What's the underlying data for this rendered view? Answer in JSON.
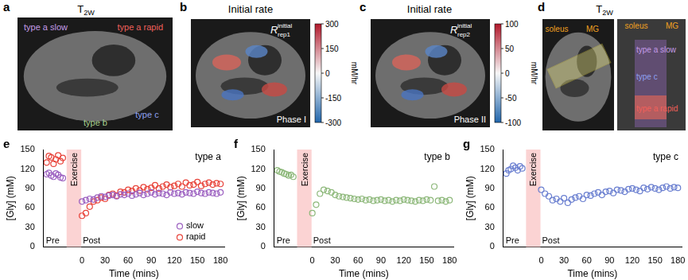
{
  "panels": [
    {
      "letter": "a",
      "title": {
        "text": "T",
        "sub": "2W"
      },
      "labels": [
        {
          "text": "type a slow",
          "color": "#c49be8"
        },
        {
          "text": "type a rapid",
          "color": "#f0605a"
        },
        {
          "text": "type b",
          "color": "#a8d08d"
        },
        {
          "text": "type c",
          "color": "#8ea0f0"
        }
      ]
    },
    {
      "letter": "b",
      "title": "Initial rate",
      "symbol": {
        "text": "R",
        "sup": "initial",
        "sub": "rep1"
      },
      "labels": [
        {
          "text": "Phase I",
          "color": "#ffffff"
        }
      ],
      "colorbar": {
        "range": [
          -300,
          300
        ],
        "ticks": [
          300,
          150,
          0,
          -150,
          -300
        ],
        "label": "mM/hr"
      }
    },
    {
      "letter": "c",
      "title": "Initial rate",
      "symbol": {
        "text": "R",
        "sup": "initial",
        "sub": "rep2"
      },
      "labels": [
        {
          "text": "Phase II",
          "color": "#ffffff"
        }
      ],
      "colorbar": {
        "range": [
          -100,
          100
        ],
        "ticks": [
          100,
          50,
          0,
          -50,
          -100
        ],
        "label": "mM/hr"
      }
    },
    {
      "letter": "d",
      "title": {
        "text": "T",
        "sub": "2W"
      },
      "labels": [
        {
          "text": "soleus",
          "color": "#f0a020"
        },
        {
          "text": "MG",
          "color": "#f0a020"
        },
        {
          "text": "soleus",
          "color": "#f0a020"
        },
        {
          "text": "MG",
          "color": "#f0a020"
        },
        {
          "text": "type a slow",
          "color": "#c49be8"
        },
        {
          "text": "type c",
          "color": "#8ea0f0"
        },
        {
          "text": "type a rapid",
          "color": "#f0605a"
        }
      ]
    }
  ],
  "chart_data": [
    {
      "type": "scatter",
      "panel": "e",
      "title": "type a",
      "x_label": "Time (mins)",
      "y_label": "[Gly] (mM)",
      "xlim": [
        -50,
        185
      ],
      "xticks": [
        0,
        30,
        60,
        90,
        120,
        150,
        180
      ],
      "ylim": [
        0,
        150
      ],
      "yticks": [
        0,
        30,
        60,
        90,
        120,
        150
      ],
      "grid": false,
      "legend": "lower right",
      "shaded": {
        "label": "Exercise",
        "x": [
          -20,
          -1
        ],
        "color": "#fbd3d3"
      },
      "annotations": [
        "Pre",
        "Post"
      ],
      "series": [
        {
          "name": "slow",
          "color": "#9b5fc0",
          "marker": "circle",
          "x": [
            -46,
            -43,
            -40,
            -37,
            -34,
            -31,
            -28,
            -25,
            0,
            5,
            10,
            15,
            20,
            25,
            30,
            35,
            40,
            45,
            50,
            55,
            60,
            65,
            70,
            75,
            80,
            85,
            90,
            95,
            100,
            105,
            110,
            115,
            120,
            125,
            130,
            135,
            140,
            145,
            150,
            155,
            160,
            165,
            170,
            175,
            180
          ],
          "values": [
            112,
            114,
            110,
            108,
            113,
            111,
            107,
            106,
            70,
            72,
            74,
            73,
            76,
            78,
            77,
            79,
            80,
            78,
            81,
            80,
            82,
            79,
            81,
            83,
            80,
            82,
            84,
            81,
            83,
            82,
            80,
            84,
            82,
            83,
            81,
            84,
            83,
            82,
            85,
            83,
            82,
            84,
            83,
            82,
            84
          ]
        },
        {
          "name": "rapid",
          "color": "#e8433a",
          "marker": "circle",
          "x": [
            -46,
            -43,
            -40,
            -37,
            -34,
            -31,
            -28,
            -25,
            0,
            5,
            10,
            15,
            20,
            25,
            30,
            35,
            40,
            45,
            50,
            55,
            60,
            65,
            70,
            75,
            80,
            85,
            90,
            95,
            100,
            105,
            110,
            115,
            120,
            125,
            130,
            135,
            140,
            145,
            150,
            155,
            160,
            165,
            170,
            175,
            180
          ],
          "values": [
            130,
            140,
            138,
            128,
            135,
            141,
            132,
            137,
            48,
            52,
            62,
            70,
            72,
            76,
            74,
            80,
            82,
            79,
            85,
            84,
            88,
            86,
            90,
            87,
            92,
            89,
            91,
            95,
            90,
            93,
            96,
            92,
            94,
            97,
            93,
            99,
            95,
            96,
            100,
            94,
            97,
            99,
            96,
            98,
            97
          ]
        }
      ]
    },
    {
      "type": "scatter",
      "panel": "f",
      "title": "type b",
      "x_label": "Time (mins)",
      "y_label": "[Gly] (mM)",
      "xlim": [
        -50,
        185
      ],
      "xticks": [
        0,
        30,
        60,
        90,
        120,
        150,
        180
      ],
      "ylim": [
        0,
        150
      ],
      "yticks": [
        0,
        30,
        60,
        90,
        120,
        150
      ],
      "grid": false,
      "shaded": {
        "label": "Exercise",
        "x": [
          -20,
          -1
        ],
        "color": "#fbd3d3"
      },
      "annotations": [
        "Pre",
        "Post"
      ],
      "series": [
        {
          "name": "type b",
          "color": "#8db87a",
          "marker": "circle",
          "x": [
            -46,
            -43,
            -40,
            -37,
            -34,
            -31,
            -28,
            -25,
            0,
            5,
            10,
            15,
            20,
            25,
            30,
            35,
            40,
            45,
            50,
            55,
            60,
            65,
            70,
            75,
            80,
            85,
            90,
            95,
            100,
            105,
            110,
            115,
            120,
            125,
            130,
            135,
            140,
            145,
            150,
            155,
            160,
            165,
            170,
            175,
            180
          ],
          "values": [
            118,
            116,
            115,
            113,
            112,
            110,
            111,
            108,
            52,
            65,
            82,
            88,
            86,
            84,
            80,
            78,
            77,
            76,
            75,
            74,
            73,
            74,
            72,
            73,
            71,
            72,
            73,
            71,
            72,
            70,
            72,
            71,
            73,
            72,
            71,
            70,
            72,
            71,
            73,
            72,
            93,
            71,
            72,
            70,
            72
          ]
        }
      ]
    },
    {
      "type": "scatter",
      "panel": "g",
      "title": "type c",
      "x_label": "Time (mins)",
      "y_label": "[Gly] (mM)",
      "xlim": [
        -50,
        185
      ],
      "xticks": [
        0,
        30,
        60,
        90,
        120,
        150,
        180
      ],
      "ylim": [
        0,
        150
      ],
      "yticks": [
        0,
        30,
        60,
        90,
        120,
        150
      ],
      "grid": false,
      "shaded": {
        "label": "Exercise",
        "x": [
          -20,
          -1
        ],
        "color": "#fbd3d3"
      },
      "annotations": [
        "Pre",
        "Post"
      ],
      "series": [
        {
          "name": "type c",
          "color": "#6a7fd0",
          "marker": "circle",
          "x": [
            -46,
            -43,
            -40,
            -37,
            -34,
            -31,
            -28,
            -25,
            0,
            5,
            10,
            15,
            20,
            25,
            30,
            35,
            40,
            45,
            50,
            55,
            60,
            65,
            70,
            75,
            80,
            85,
            90,
            95,
            100,
            105,
            110,
            115,
            120,
            125,
            130,
            135,
            140,
            145,
            150,
            155,
            160,
            165,
            170,
            175,
            180
          ],
          "values": [
            113,
            118,
            120,
            125,
            122,
            118,
            124,
            121,
            88,
            82,
            78,
            72,
            74,
            70,
            75,
            68,
            73,
            76,
            78,
            74,
            80,
            79,
            82,
            84,
            80,
            85,
            86,
            83,
            88,
            87,
            85,
            89,
            90,
            88,
            86,
            91,
            89,
            92,
            90,
            88,
            91,
            93,
            90,
            92,
            91
          ]
        }
      ]
    }
  ]
}
